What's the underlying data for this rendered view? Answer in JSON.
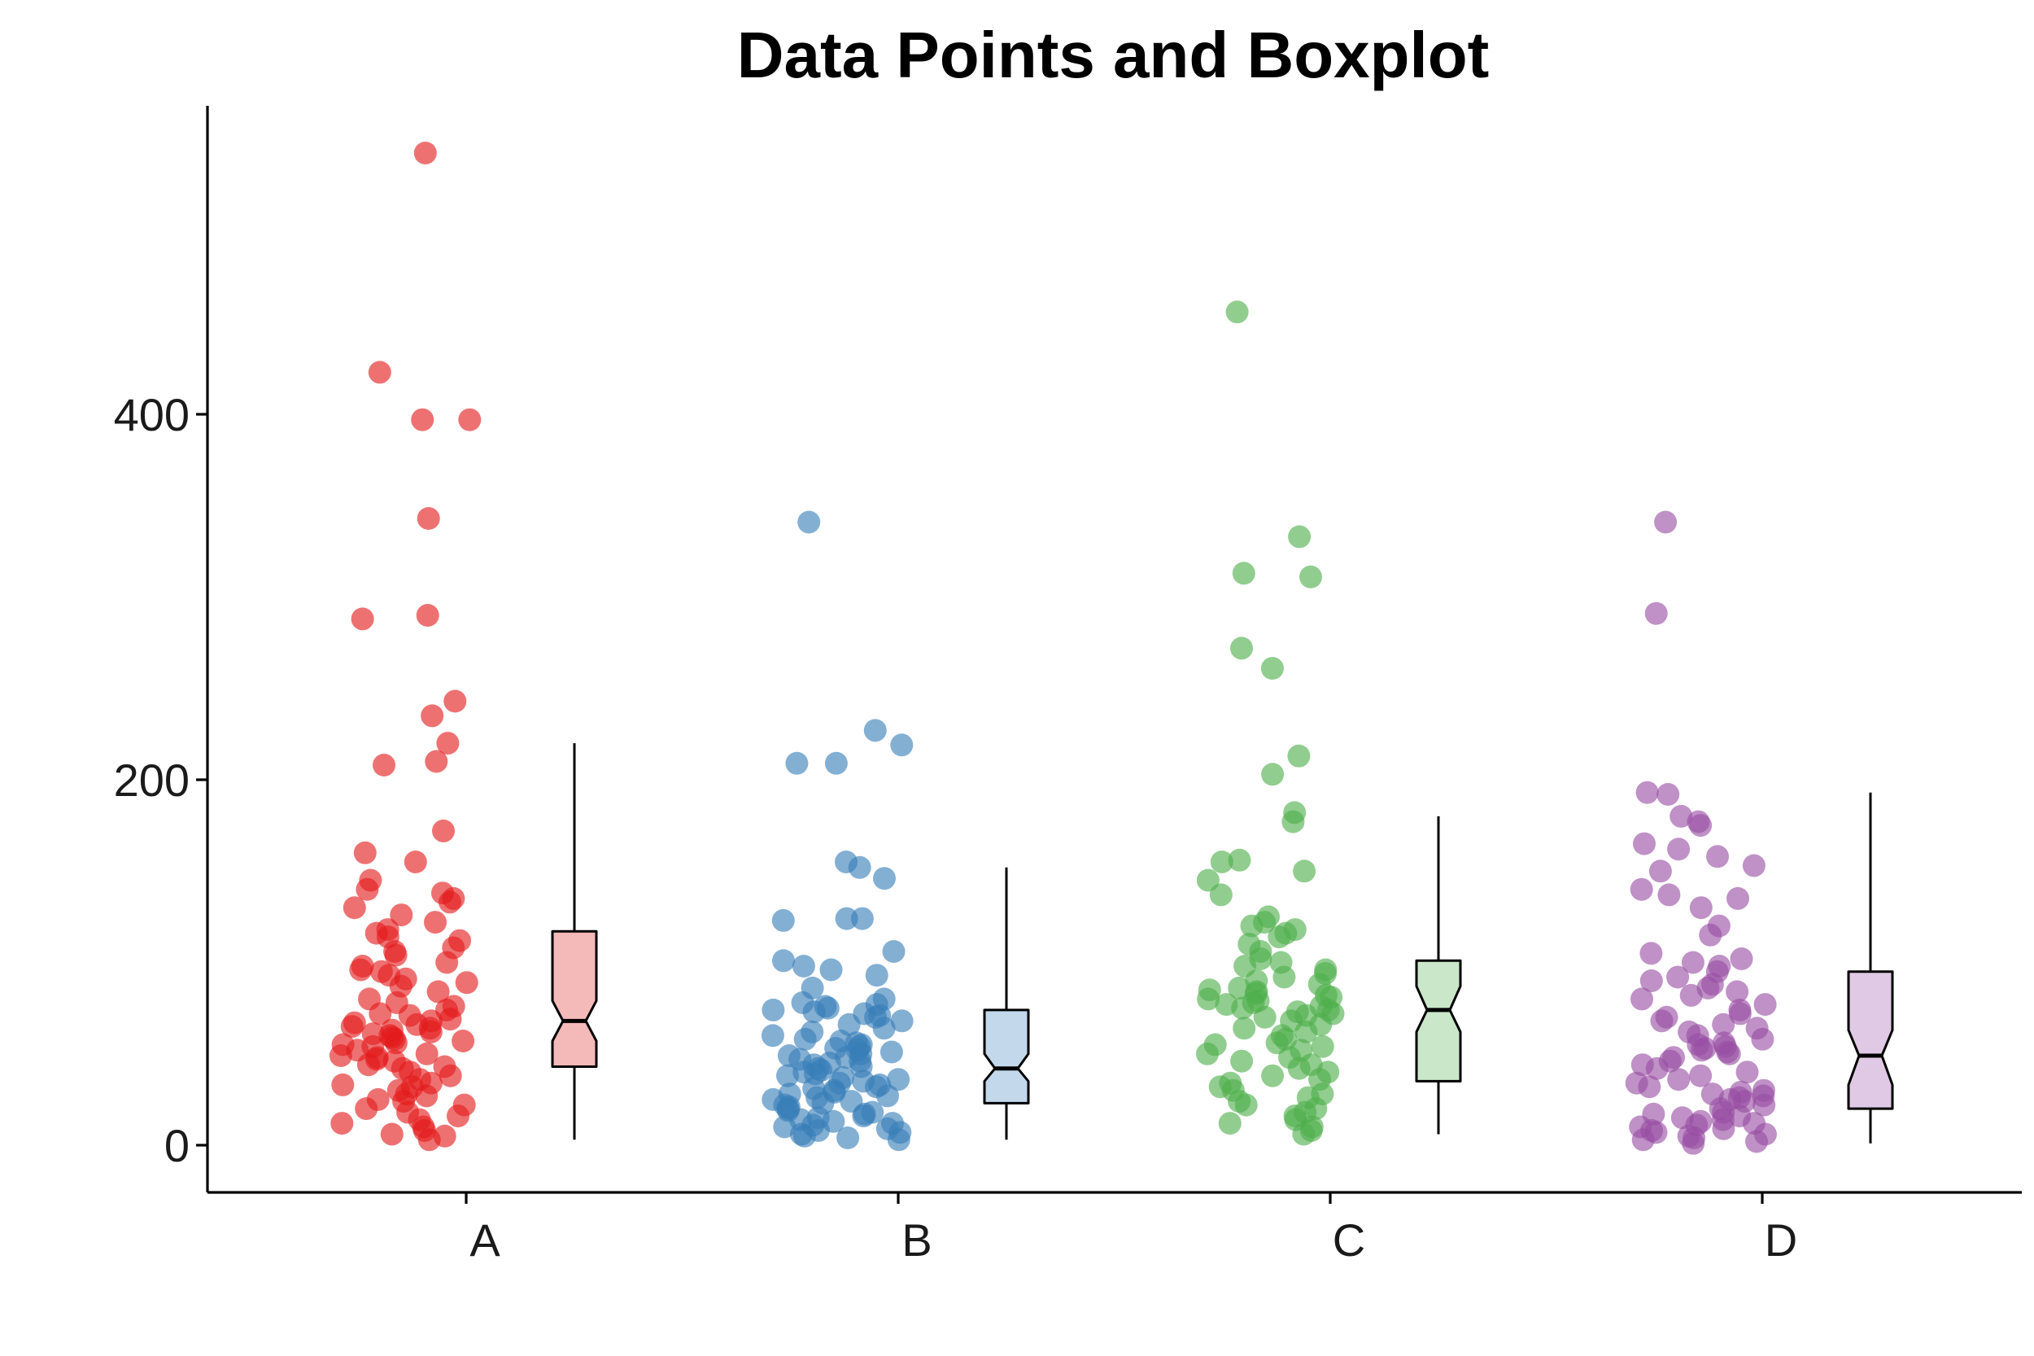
{
  "chart_data": {
    "type": "scatter",
    "title": "Data Points and Boxplot",
    "xlabel": "",
    "ylabel": "",
    "categories": [
      "A",
      "B",
      "C",
      "D"
    ],
    "y_ticks": [
      0,
      200,
      400
    ],
    "ylim": [
      -25,
      565
    ],
    "grid": false,
    "legend": "none",
    "colors": {
      "A": {
        "point": "#E41A1C",
        "box": "#F4B9B9"
      },
      "B": {
        "point": "#377EB8",
        "box": "#C3D8EB"
      },
      "C": {
        "point": "#4DAF4A",
        "box": "#CAE7C9"
      },
      "D": {
        "point": "#984EA3",
        "box": "#E0C9E4"
      }
    },
    "series": [
      {
        "category": "A",
        "box": {
          "lower_whisker": 3,
          "q1": 43,
          "median": 68,
          "q3": 117,
          "upper_whisker": 220,
          "notch_low": 57,
          "notch_high": 79
        },
        "points": [
          543,
          423,
          397,
          397,
          343,
          290,
          288,
          243,
          235,
          220,
          210,
          208,
          172,
          160,
          155,
          145,
          140,
          138,
          135,
          133,
          130,
          126,
          122,
          118,
          116,
          114,
          112,
          108,
          106,
          104,
          100,
          98,
          96,
          95,
          93,
          91,
          89,
          87,
          84,
          80,
          78,
          76,
          74,
          72,
          71,
          69,
          68,
          67,
          66,
          65,
          64,
          63,
          62,
          61,
          60,
          59,
          58,
          57,
          56,
          55,
          54,
          52,
          50,
          49,
          48,
          47,
          46,
          44,
          43,
          42,
          40,
          38,
          36,
          34,
          33,
          32,
          30,
          28,
          27,
          25,
          24,
          22,
          20,
          18,
          16,
          14,
          12,
          10,
          8,
          6,
          5,
          3
        ]
      },
      {
        "category": "B",
        "box": {
          "lower_whisker": 3,
          "q1": 23,
          "median": 42,
          "q3": 74,
          "upper_whisker": 152,
          "notch_low": 35,
          "notch_high": 50
        },
        "points": [
          341,
          227,
          219,
          209,
          209,
          155,
          152,
          146,
          124,
          124,
          123,
          106,
          101,
          98,
          96,
          93,
          86,
          80,
          78,
          77,
          76,
          75,
          74,
          73,
          72,
          71,
          70,
          68,
          66,
          64,
          62,
          60,
          58,
          57,
          56,
          55,
          54,
          53,
          52,
          51,
          50,
          49,
          48,
          47,
          46,
          45,
          44,
          43,
          42,
          41,
          40,
          39,
          38,
          37,
          36,
          35,
          34,
          33,
          32,
          31,
          30,
          29,
          28,
          27,
          26,
          25,
          24,
          23,
          22,
          21,
          20,
          19,
          18,
          17,
          16,
          15,
          14,
          13,
          12,
          11,
          10,
          9,
          8,
          7,
          6,
          5,
          4,
          3
        ]
      },
      {
        "category": "C",
        "box": {
          "lower_whisker": 6,
          "q1": 35,
          "median": 74,
          "q3": 101,
          "upper_whisker": 180,
          "notch_low": 62,
          "notch_high": 87
        },
        "points": [
          456,
          333,
          313,
          311,
          272,
          261,
          213,
          203,
          182,
          177,
          156,
          155,
          150,
          145,
          137,
          125,
          122,
          120,
          118,
          116,
          114,
          110,
          106,
          102,
          100,
          98,
          96,
          94,
          92,
          90,
          88,
          86,
          85,
          84,
          83,
          82,
          81,
          80,
          79,
          78,
          77,
          76,
          75,
          74,
          73,
          72,
          71,
          70,
          68,
          66,
          64,
          62,
          60,
          58,
          56,
          55,
          54,
          52,
          50,
          48,
          46,
          44,
          42,
          40,
          38,
          36,
          34,
          32,
          30,
          28,
          26,
          24,
          22,
          20,
          18,
          16,
          14,
          12,
          10,
          8,
          6
        ]
      },
      {
        "category": "D",
        "box": {
          "lower_whisker": 1,
          "q1": 20,
          "median": 49,
          "q3": 95,
          "upper_whisker": 193,
          "notch_low": 33,
          "notch_high": 63
        },
        "points": [
          341,
          291,
          193,
          192,
          180,
          177,
          175,
          165,
          162,
          158,
          153,
          150,
          140,
          137,
          135,
          130,
          120,
          115,
          105,
          102,
          100,
          98,
          95,
          92,
          90,
          88,
          86,
          84,
          82,
          80,
          77,
          74,
          72,
          70,
          68,
          66,
          64,
          62,
          60,
          58,
          56,
          55,
          54,
          53,
          52,
          51,
          50,
          48,
          46,
          44,
          42,
          40,
          38,
          36,
          34,
          32,
          30,
          29,
          28,
          27,
          26,
          25,
          24,
          22,
          20,
          18,
          17,
          16,
          15,
          14,
          13,
          12,
          11,
          10,
          9,
          8,
          7,
          6,
          5,
          4,
          3,
          2,
          1
        ]
      }
    ]
  }
}
